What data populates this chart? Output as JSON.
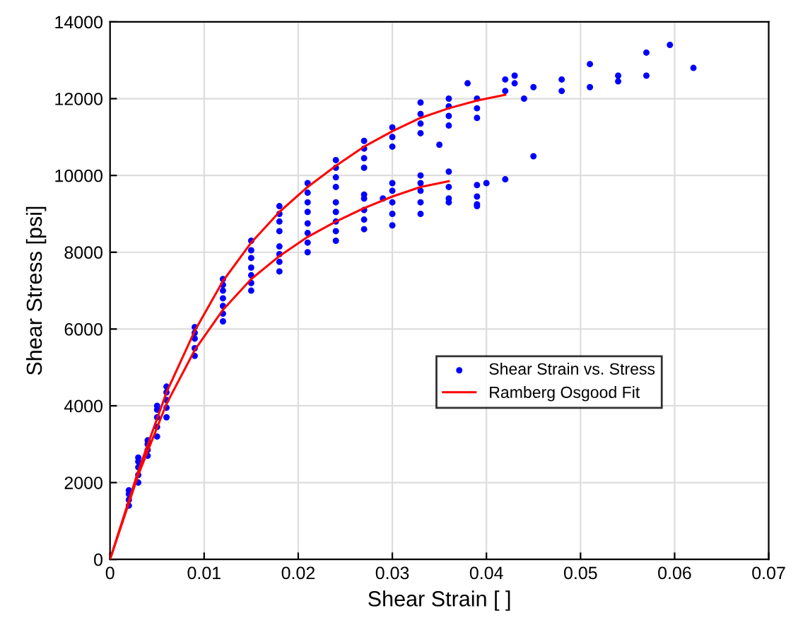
{
  "chart_data": {
    "type": "scatter",
    "xlabel": "Shear Strain [ ]",
    "ylabel": "Shear Stress [psi]",
    "xlim": [
      0,
      0.07
    ],
    "xticks": [
      0,
      0.01,
      0.02,
      0.03,
      0.04,
      0.05,
      0.06,
      0.07
    ],
    "ylim": [
      0,
      14000
    ],
    "yticks": [
      0,
      2000,
      4000,
      6000,
      8000,
      10000,
      12000,
      14000
    ],
    "grid": true,
    "legend": "right",
    "marker": "circle",
    "series": [
      {
        "name": "Shear Strain vs. Stress",
        "color": "#0000ff",
        "x": [
          0.002,
          0.002,
          0.002,
          0.002,
          0.003,
          0.003,
          0.003,
          0.003,
          0.003,
          0.004,
          0.004,
          0.004,
          0.004,
          0.005,
          0.005,
          0.005,
          0.005,
          0.005,
          0.006,
          0.006,
          0.006,
          0.006,
          0.006,
          0.009,
          0.009,
          0.009,
          0.009,
          0.009,
          0.012,
          0.012,
          0.012,
          0.012,
          0.012,
          0.012,
          0.012,
          0.015,
          0.015,
          0.015,
          0.015,
          0.015,
          0.015,
          0.015,
          0.018,
          0.018,
          0.018,
          0.018,
          0.018,
          0.018,
          0.018,
          0.018,
          0.021,
          0.021,
          0.021,
          0.021,
          0.021,
          0.021,
          0.021,
          0.021,
          0.024,
          0.024,
          0.024,
          0.024,
          0.024,
          0.024,
          0.024,
          0.024,
          0.024,
          0.027,
          0.027,
          0.027,
          0.027,
          0.027,
          0.027,
          0.027,
          0.027,
          0.027,
          0.029,
          0.03,
          0.03,
          0.03,
          0.03,
          0.03,
          0.03,
          0.03,
          0.03,
          0.033,
          0.033,
          0.033,
          0.033,
          0.033,
          0.033,
          0.033,
          0.033,
          0.033,
          0.035,
          0.036,
          0.036,
          0.036,
          0.036,
          0.036,
          0.036,
          0.036,
          0.036,
          0.038,
          0.039,
          0.039,
          0.039,
          0.039,
          0.039,
          0.039,
          0.039,
          0.04,
          0.042,
          0.042,
          0.042,
          0.043,
          0.043,
          0.044,
          0.045,
          0.045,
          0.048,
          0.048,
          0.051,
          0.051,
          0.054,
          0.054,
          0.057,
          0.057,
          0.0595,
          0.062
        ],
        "values": [
          1400,
          1550,
          1700,
          1800,
          2000,
          2200,
          2400,
          2550,
          2650,
          2700,
          2850,
          3000,
          3100,
          3200,
          3450,
          3700,
          3900,
          4000,
          3700,
          3950,
          4150,
          4350,
          4500,
          5300,
          5500,
          5750,
          5900,
          6050,
          6200,
          6400,
          6600,
          6800,
          7000,
          7150,
          7300,
          7000,
          7200,
          7400,
          7600,
          7850,
          8050,
          8300,
          7500,
          7750,
          7950,
          8150,
          8550,
          8800,
          9000,
          9200,
          8000,
          8250,
          8500,
          8750,
          9050,
          9300,
          9550,
          9800,
          8300,
          8550,
          8800,
          9050,
          9300,
          9700,
          9950,
          10200,
          10400,
          8600,
          8850,
          9100,
          9400,
          9500,
          10200,
          10450,
          10700,
          10900,
          9400,
          8700,
          9000,
          9300,
          9600,
          9800,
          10750,
          11000,
          11250,
          9000,
          9300,
          9600,
          9800,
          10000,
          11100,
          11350,
          11600,
          11900,
          10800,
          9300,
          9400,
          9700,
          10100,
          11300,
          11550,
          11800,
          12000,
          12400,
          9200,
          9450,
          9750,
          11500,
          11750,
          12000,
          9250,
          9800,
          9900,
          12200,
          12500,
          12400,
          12600,
          12000,
          10500,
          12300,
          12200,
          12500,
          12300,
          12900,
          12450,
          12600,
          12600,
          13200,
          13400,
          12800
        ]
      },
      {
        "name": "Ramberg Osgood Fit",
        "type": "line",
        "color": "#ff0000",
        "marker": "none",
        "x": [
          0,
          0.003,
          0.006,
          0.009,
          0.012,
          0.015,
          0.018,
          0.021,
          0.024,
          0.027,
          0.03,
          0.033,
          0.036,
          0.039,
          0.042
        ],
        "values": [
          0,
          2300,
          4350,
          5950,
          7250,
          8250,
          9050,
          9700,
          10250,
          10750,
          11150,
          11500,
          11750,
          11950,
          12100
        ]
      },
      {
        "type": "line",
        "color": "#ff0000",
        "marker": "none",
        "x": [
          0,
          0.003,
          0.006,
          0.009,
          0.012,
          0.015,
          0.018,
          0.021,
          0.024,
          0.027,
          0.03,
          0.033,
          0.036
        ],
        "values": [
          0,
          2200,
          4050,
          5450,
          6500,
          7300,
          7900,
          8400,
          8800,
          9150,
          9450,
          9700,
          9850
        ]
      }
    ]
  }
}
